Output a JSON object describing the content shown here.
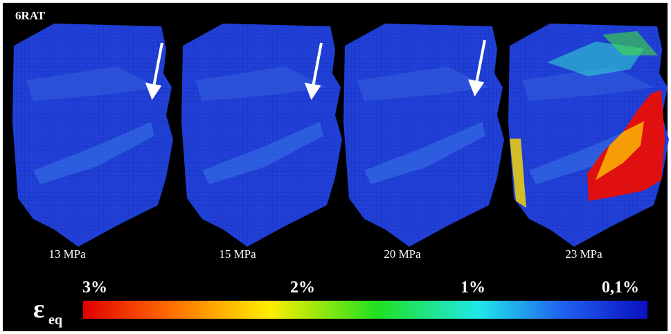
{
  "header": {
    "title": "6RAT"
  },
  "panels": [
    {
      "label": "13 MPa"
    },
    {
      "label": "15 MPa"
    },
    {
      "label": "20 MPa"
    },
    {
      "label": "23 MPa"
    }
  ],
  "colorbar": {
    "symbol": "ε",
    "subscript": "eq",
    "labels": [
      "3%",
      "2%",
      "1%",
      "0,1%"
    ]
  }
}
